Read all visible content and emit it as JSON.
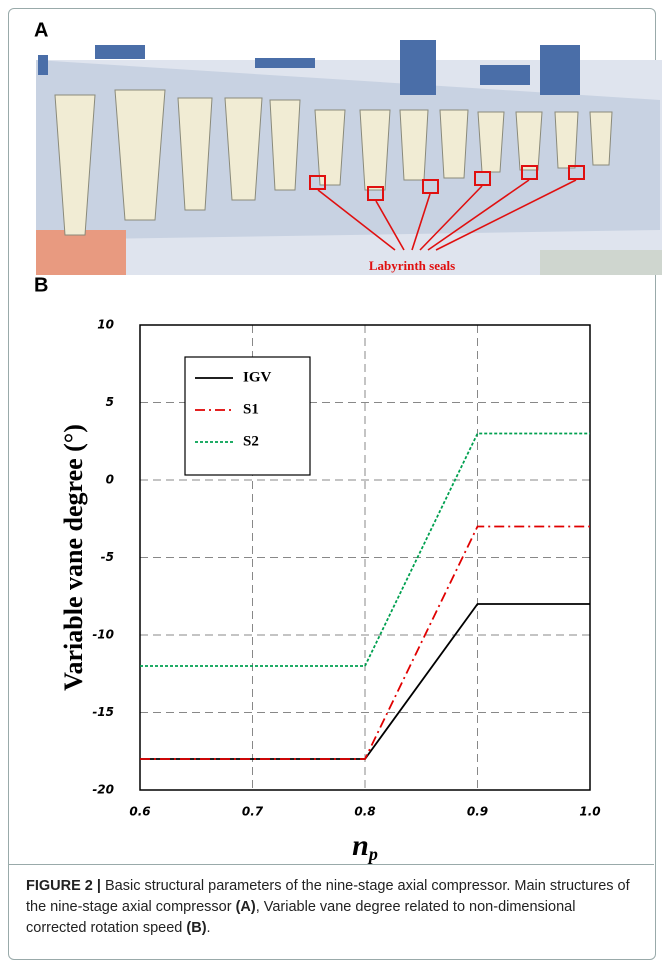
{
  "panels": {
    "a": {
      "label": "A",
      "annotation": "Labyrinth seals"
    },
    "b": {
      "label": "B"
    }
  },
  "chart_data": {
    "type": "line",
    "x": [
      0.6,
      0.8,
      0.9,
      1.0
    ],
    "xlim": [
      0.6,
      1.0
    ],
    "xticks": [
      0.6,
      0.7,
      0.8,
      0.9,
      {
        "value": 1.0,
        "label": "1.0"
      }
    ],
    "ylim": [
      -20,
      10
    ],
    "yticks": [
      -20,
      -15,
      -10,
      -5,
      0,
      5,
      10
    ],
    "x_label": "n",
    "x_label_sub": "p",
    "y_label": "Variable vane degree (°)",
    "grid": true,
    "legend": "upper left",
    "series": [
      {
        "name": "IGV",
        "color": "#000000",
        "dash": "solid",
        "values": [
          -18,
          -18,
          -8,
          -8
        ]
      },
      {
        "name": "S1",
        "color": "#e00000",
        "dash": "dashdot",
        "values": [
          -18,
          -18,
          -3,
          -3
        ]
      },
      {
        "name": "S2",
        "color": "#00a050",
        "dash": "dotted",
        "values": [
          -12,
          -12,
          3,
          3
        ]
      }
    ]
  },
  "caption": [
    {
      "text": "FIGURE 2 |",
      "bold": true
    },
    {
      "text": " Basic structural parameters of the nine-stage axial compressor. Main structures of the nine-stage axial compressor ",
      "bold": false
    },
    {
      "text": "(A)",
      "bold": true
    },
    {
      "text": ", Variable vane degree related to non-dimensional corrected rotation speed ",
      "bold": false
    },
    {
      "text": "(B)",
      "bold": true
    },
    {
      "text": ".",
      "bold": false
    }
  ]
}
